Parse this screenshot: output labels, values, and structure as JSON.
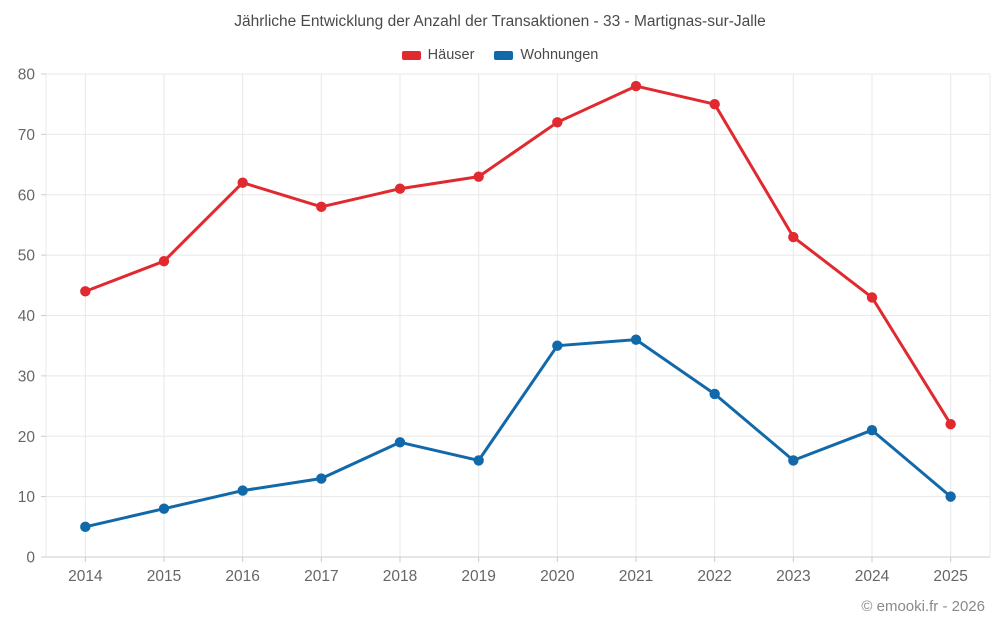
{
  "title": "Jährliche Entwicklung der Anzahl der Transaktionen - 33 - Martignas-sur-Jalle",
  "footer": "© emooki.fr - 2026",
  "colors": {
    "haeuser_red": "#e02a30",
    "wohnungen_blue": "#1269a9",
    "gridline": "#e8e8e8",
    "axis_line": "#cccccc",
    "axis_label": "#666666",
    "title_text": "#4a4a4a",
    "footer_text": "#8a8a8a"
  },
  "chart_data": {
    "type": "line",
    "title": "Jährliche Entwicklung der Anzahl der Transaktionen - 33 - Martignas-sur-Jalle",
    "categories": [
      "2014",
      "2015",
      "2016",
      "2017",
      "2018",
      "2019",
      "2020",
      "2021",
      "2022",
      "2023",
      "2024",
      "2025"
    ],
    "series": [
      {
        "name": "Häuser",
        "color": "#e02a30",
        "values": [
          44,
          49,
          62,
          58,
          61,
          63,
          72,
          78,
          75,
          53,
          43,
          22
        ]
      },
      {
        "name": "Wohnungen",
        "color": "#1269a9",
        "values": [
          5,
          8,
          11,
          13,
          19,
          16,
          35,
          36,
          27,
          16,
          21,
          10
        ]
      }
    ],
    "xlabel": "",
    "ylabel": "",
    "ylim": [
      0,
      80
    ],
    "ytick_step": 10,
    "grid": true,
    "legend_position": "top",
    "marker": "circle"
  }
}
